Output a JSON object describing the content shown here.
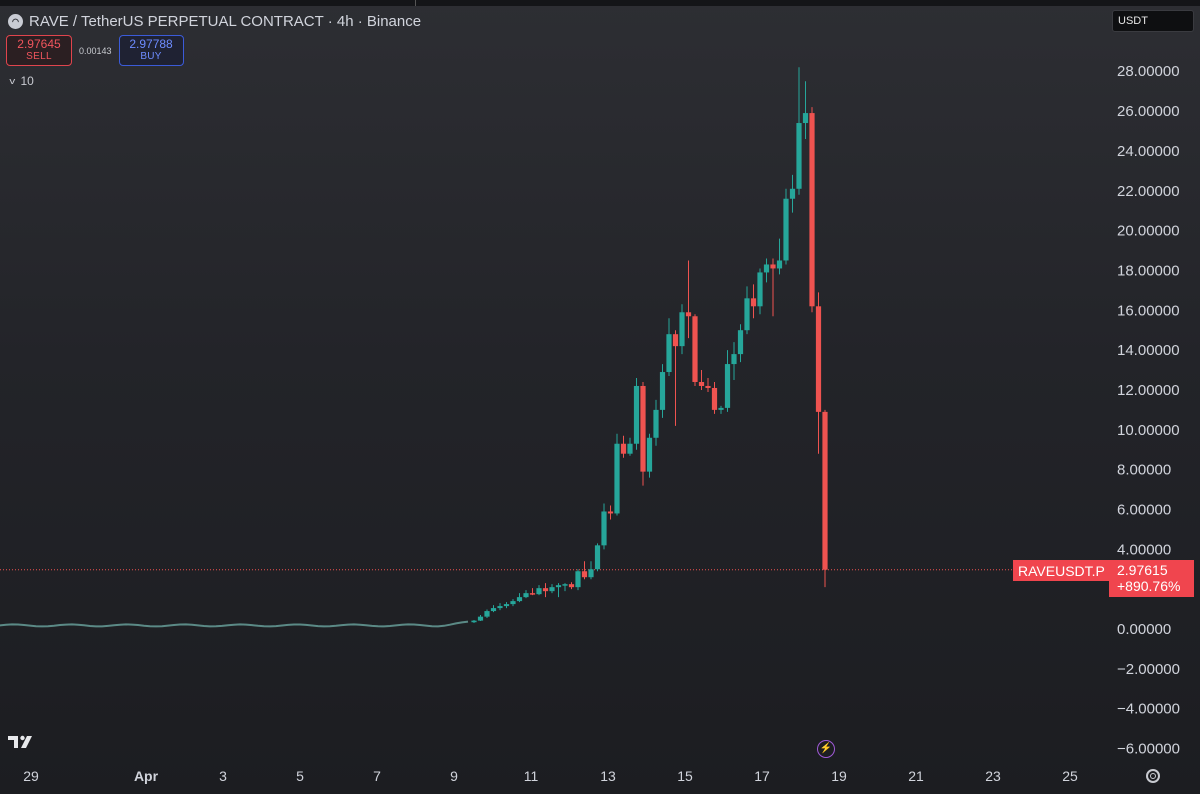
{
  "header": {
    "symbol_title": "RAVE / TetherUS PERPETUAL CONTRACT · 4h · Binance",
    "logo_icon": "rave-coin-icon"
  },
  "trade": {
    "sell_price": "2.97645",
    "sell_label": "SELL",
    "spread": "0.00143",
    "buy_price": "2.97788",
    "buy_label": "BUY"
  },
  "indicators": {
    "toggle_icon": "chevron-down-icon",
    "count": "10"
  },
  "currency": {
    "selected": "USDT"
  },
  "last_price": {
    "symbol": "RAVEUSDT.P",
    "value": "2.97615",
    "change": "+890.76%"
  },
  "colors": {
    "up": "#26a69a",
    "down": "#ef5350",
    "price_line": "#ef5350",
    "background": "#232429"
  },
  "icons": {
    "brand": "tradingview-logo",
    "replay": "lightning-icon",
    "settings": "gear-icon"
  },
  "chart_data": {
    "type": "candlestick",
    "timeframe": "4h",
    "y_axis": {
      "range": [
        -6.6,
        29.2
      ],
      "ticks": [
        "28.00000",
        "26.00000",
        "24.00000",
        "22.00000",
        "20.00000",
        "18.00000",
        "16.00000",
        "14.00000",
        "12.00000",
        "10.00000",
        "8.00000",
        "6.00000",
        "4.00000",
        "2.00000",
        "0.00000",
        "−2.00000",
        "−4.00000",
        "−6.00000"
      ]
    },
    "x_axis": {
      "ticks": [
        "29",
        "Apr",
        "3",
        "5",
        "7",
        "9",
        "11",
        "13",
        "15",
        "17",
        "19",
        "21",
        "23",
        "25"
      ],
      "bold_ticks": [
        "Apr"
      ]
    },
    "current_price": 2.97615,
    "candles": [
      {
        "t": "04-10 00:00",
        "o": 0.34,
        "h": 0.45,
        "l": 0.3,
        "c": 0.42
      },
      {
        "t": "04-10 04:00",
        "o": 0.42,
        "h": 0.7,
        "l": 0.4,
        "c": 0.62
      },
      {
        "t": "04-10 08:00",
        "o": 0.62,
        "h": 0.98,
        "l": 0.55,
        "c": 0.9
      },
      {
        "t": "04-10 12:00",
        "o": 0.9,
        "h": 1.2,
        "l": 0.85,
        "c": 1.05
      },
      {
        "t": "04-10 16:00",
        "o": 1.05,
        "h": 1.3,
        "l": 0.95,
        "c": 1.15
      },
      {
        "t": "04-10 20:00",
        "o": 1.15,
        "h": 1.35,
        "l": 1.05,
        "c": 1.25
      },
      {
        "t": "04-11 00:00",
        "o": 1.25,
        "h": 1.5,
        "l": 1.15,
        "c": 1.4
      },
      {
        "t": "04-11 04:00",
        "o": 1.4,
        "h": 1.8,
        "l": 1.35,
        "c": 1.6
      },
      {
        "t": "04-11 08:00",
        "o": 1.6,
        "h": 1.95,
        "l": 1.55,
        "c": 1.8
      },
      {
        "t": "04-11 12:00",
        "o": 1.8,
        "h": 2.05,
        "l": 1.7,
        "c": 1.75
      },
      {
        "t": "04-11 16:00",
        "o": 1.75,
        "h": 2.2,
        "l": 1.7,
        "c": 2.05
      },
      {
        "t": "04-11 20:00",
        "o": 2.05,
        "h": 2.3,
        "l": 1.6,
        "c": 1.9
      },
      {
        "t": "04-12 00:00",
        "o": 1.9,
        "h": 2.25,
        "l": 1.8,
        "c": 2.1
      },
      {
        "t": "04-12 04:00",
        "o": 2.1,
        "h": 2.3,
        "l": 1.6,
        "c": 2.2
      },
      {
        "t": "04-12 08:00",
        "o": 2.2,
        "h": 2.3,
        "l": 1.9,
        "c": 2.25
      },
      {
        "t": "04-12 12:00",
        "o": 2.25,
        "h": 2.35,
        "l": 2.0,
        "c": 2.1
      },
      {
        "t": "04-12 16:00",
        "o": 2.1,
        "h": 3.0,
        "l": 1.95,
        "c": 2.9
      },
      {
        "t": "04-12 20:00",
        "o": 2.9,
        "h": 3.4,
        "l": 2.5,
        "c": 2.6
      },
      {
        "t": "04-13 00:00",
        "o": 2.6,
        "h": 3.4,
        "l": 2.5,
        "c": 3.0
      },
      {
        "t": "04-13 04:00",
        "o": 3.0,
        "h": 4.3,
        "l": 2.9,
        "c": 4.2
      },
      {
        "t": "04-13 08:00",
        "o": 4.2,
        "h": 6.3,
        "l": 4.0,
        "c": 5.9
      },
      {
        "t": "04-13 12:00",
        "o": 5.9,
        "h": 6.2,
        "l": 5.5,
        "c": 5.8
      },
      {
        "t": "04-13 16:00",
        "o": 5.8,
        "h": 9.8,
        "l": 5.7,
        "c": 9.3
      },
      {
        "t": "04-13 20:00",
        "o": 9.3,
        "h": 9.7,
        "l": 8.6,
        "c": 8.8
      },
      {
        "t": "04-14 00:00",
        "o": 8.8,
        "h": 9.6,
        "l": 8.7,
        "c": 9.3
      },
      {
        "t": "04-14 04:00",
        "o": 9.3,
        "h": 12.6,
        "l": 9.0,
        "c": 12.2
      },
      {
        "t": "04-14 08:00",
        "o": 12.2,
        "h": 12.4,
        "l": 7.2,
        "c": 7.9
      },
      {
        "t": "04-14 12:00",
        "o": 7.9,
        "h": 9.8,
        "l": 7.6,
        "c": 9.6
      },
      {
        "t": "04-14 16:00",
        "o": 9.6,
        "h": 11.5,
        "l": 9.2,
        "c": 11.0
      },
      {
        "t": "04-14 20:00",
        "o": 11.0,
        "h": 13.3,
        "l": 10.6,
        "c": 12.9
      },
      {
        "t": "04-15 00:00",
        "o": 12.9,
        "h": 15.6,
        "l": 12.7,
        "c": 14.8
      },
      {
        "t": "04-15 04:00",
        "o": 14.8,
        "h": 15.0,
        "l": 10.2,
        "c": 14.2
      },
      {
        "t": "04-15 08:00",
        "o": 14.2,
        "h": 16.3,
        "l": 13.8,
        "c": 15.9
      },
      {
        "t": "04-15 12:00",
        "o": 15.9,
        "h": 18.5,
        "l": 14.6,
        "c": 15.7
      },
      {
        "t": "04-15 16:00",
        "o": 15.7,
        "h": 15.8,
        "l": 12.2,
        "c": 12.4
      },
      {
        "t": "04-15 20:00",
        "o": 12.4,
        "h": 13.0,
        "l": 12.0,
        "c": 12.2
      },
      {
        "t": "04-16 00:00",
        "o": 12.2,
        "h": 12.6,
        "l": 11.9,
        "c": 12.1
      },
      {
        "t": "04-16 04:00",
        "o": 12.1,
        "h": 12.4,
        "l": 10.8,
        "c": 11.0
      },
      {
        "t": "04-16 08:00",
        "o": 11.0,
        "h": 11.2,
        "l": 10.8,
        "c": 11.1
      },
      {
        "t": "04-16 12:00",
        "o": 11.1,
        "h": 14.0,
        "l": 10.9,
        "c": 13.3
      },
      {
        "t": "04-16 16:00",
        "o": 13.3,
        "h": 14.4,
        "l": 12.5,
        "c": 13.8
      },
      {
        "t": "04-16 20:00",
        "o": 13.8,
        "h": 15.3,
        "l": 13.4,
        "c": 15.0
      },
      {
        "t": "04-17 00:00",
        "o": 15.0,
        "h": 17.2,
        "l": 14.8,
        "c": 16.6
      },
      {
        "t": "04-17 04:00",
        "o": 16.6,
        "h": 17.3,
        "l": 15.6,
        "c": 16.2
      },
      {
        "t": "04-17 08:00",
        "o": 16.2,
        "h": 18.1,
        "l": 15.8,
        "c": 17.9
      },
      {
        "t": "04-17 12:00",
        "o": 17.9,
        "h": 18.6,
        "l": 17.4,
        "c": 18.3
      },
      {
        "t": "04-17 16:00",
        "o": 18.3,
        "h": 18.6,
        "l": 15.7,
        "c": 18.1
      },
      {
        "t": "04-17 20:00",
        "o": 18.1,
        "h": 19.6,
        "l": 17.8,
        "c": 18.5
      },
      {
        "t": "04-18 00:00",
        "o": 18.5,
        "h": 22.1,
        "l": 18.3,
        "c": 21.6
      },
      {
        "t": "04-18 04:00",
        "o": 21.6,
        "h": 22.8,
        "l": 20.9,
        "c": 22.1
      },
      {
        "t": "04-18 08:00",
        "o": 22.1,
        "h": 28.2,
        "l": 21.8,
        "c": 25.4
      },
      {
        "t": "04-18 12:00",
        "o": 25.4,
        "h": 27.5,
        "l": 24.6,
        "c": 25.9
      },
      {
        "t": "04-18 16:00",
        "o": 25.9,
        "h": 26.2,
        "l": 15.9,
        "c": 16.2
      },
      {
        "t": "04-18 20:00",
        "o": 16.2,
        "h": 16.9,
        "l": 8.8,
        "c": 10.9
      },
      {
        "t": "04-19 00:00",
        "o": 10.9,
        "h": 11.0,
        "l": 2.1,
        "c": 2.97615
      }
    ]
  }
}
